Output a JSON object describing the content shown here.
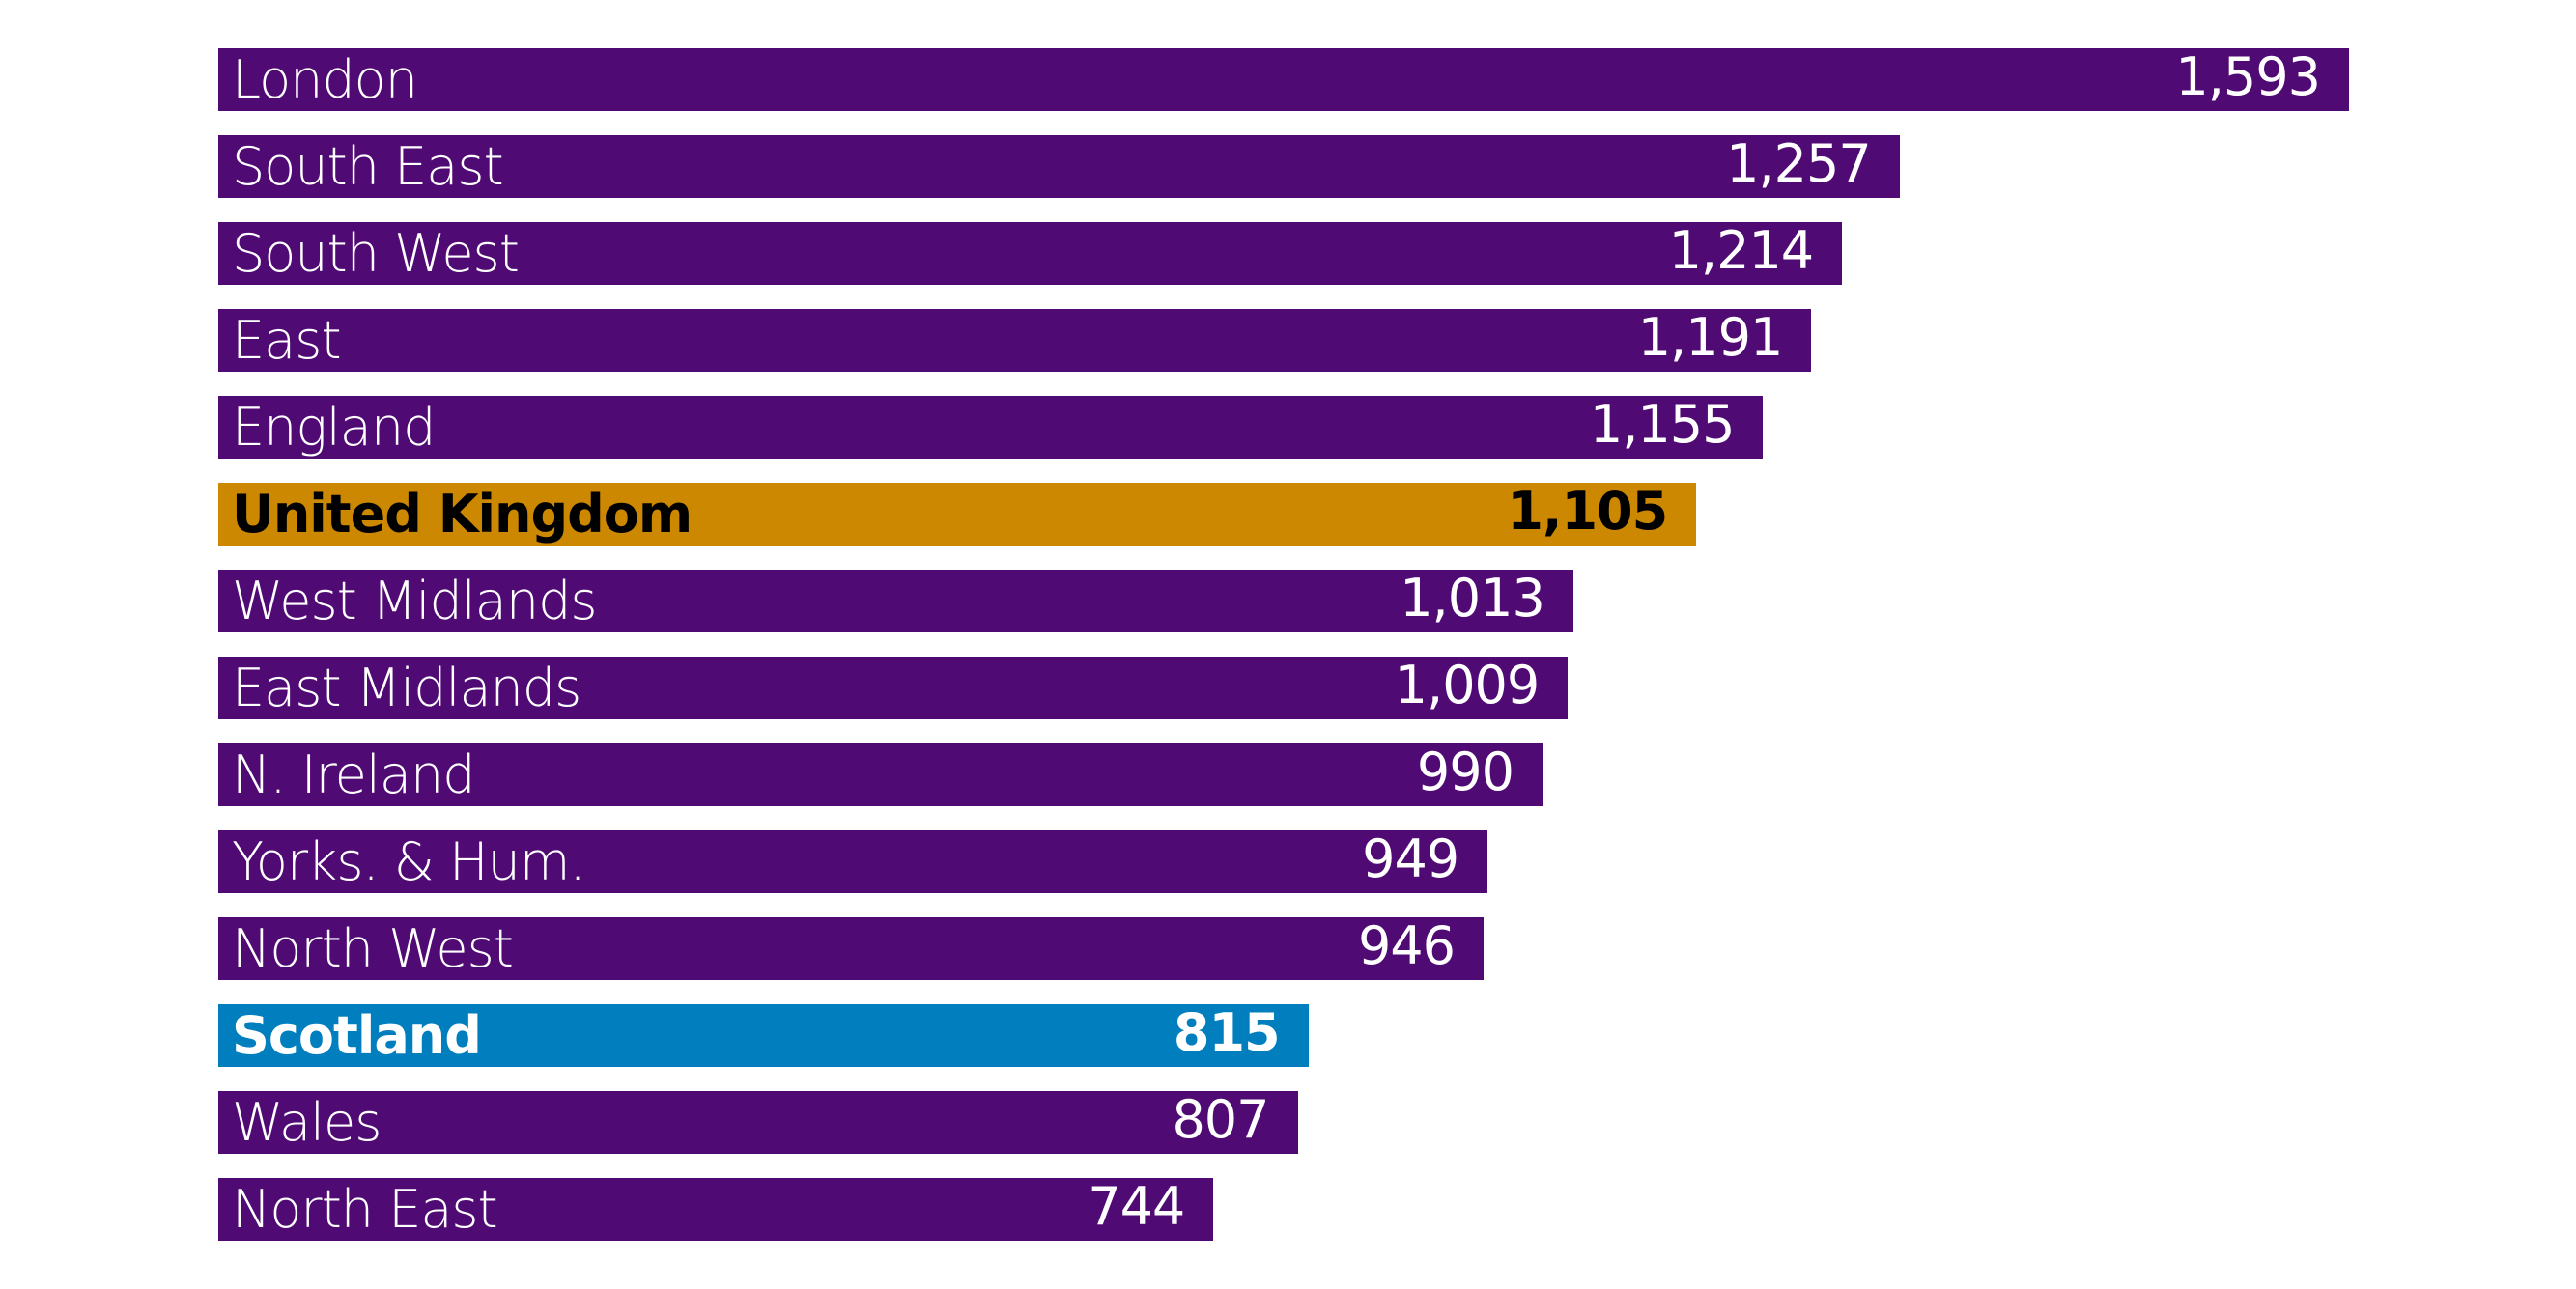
{
  "chart_data": {
    "type": "bar",
    "orientation": "horizontal",
    "categories": [
      "London",
      "South East",
      "South West",
      "East",
      "England",
      "United Kingdom",
      "West Midlands",
      "East Midlands",
      "N. Ireland",
      "Yorks. & Hum.",
      "North West",
      "Scotland",
      "Wales",
      "North East"
    ],
    "values": [
      1593,
      1257,
      1214,
      1191,
      1155,
      1105,
      1013,
      1009,
      990,
      949,
      946,
      815,
      807,
      744
    ],
    "value_labels": [
      "1,593",
      "1,257",
      "1,214",
      "1,191",
      "1,155",
      "1,105",
      "1,013",
      "1,009",
      "990",
      "949",
      "946",
      "815",
      "807",
      "744"
    ],
    "highlight": {
      "United Kingdom": "#cc8800",
      "Scotland": "#007ebd"
    },
    "bold_categories": [
      "United Kingdom",
      "Scotland"
    ],
    "default_color": "#500a74",
    "grid": false,
    "xlim": [
      0,
      1593
    ]
  }
}
